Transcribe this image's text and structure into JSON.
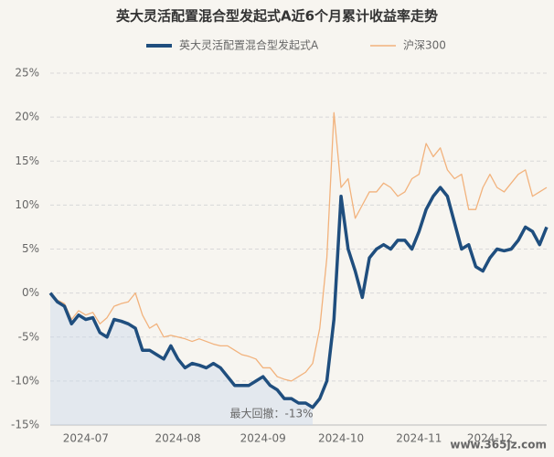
{
  "chart_data": {
    "type": "line",
    "title": "英大灵活配置混合型发起式A近6个月累计收益率走势",
    "annotation": "最大回撤：-13%",
    "watermark": "www.365jz.com",
    "categories": [
      null,
      null,
      null,
      null,
      null,
      "2024-07",
      null,
      null,
      null,
      null,
      null,
      null,
      null,
      null,
      null,
      null,
      null,
      null,
      "2024-08",
      null,
      null,
      null,
      null,
      null,
      null,
      null,
      null,
      null,
      null,
      null,
      "2024-09",
      null,
      null,
      null,
      null,
      null,
      null,
      null,
      null,
      null,
      null,
      "2024-10",
      null,
      null,
      null,
      null,
      null,
      null,
      null,
      null,
      null,
      null,
      "2024-11",
      null,
      null,
      null,
      null,
      null,
      null,
      null,
      null,
      null,
      "2024-12",
      null,
      null,
      null,
      null,
      null,
      null,
      null,
      null
    ],
    "series": [
      {
        "name": "英大灵活配置混合型发起式A",
        "color": "#1f4e7e",
        "values": [
          0,
          -1,
          -1.5,
          -3.5,
          -2.5,
          -3,
          -2.8,
          -4.5,
          -5,
          -3,
          -3.2,
          -3.5,
          -4,
          -6.5,
          -6.5,
          -7,
          -7.5,
          -6,
          -7.5,
          -8.5,
          -8,
          -8.2,
          -8.5,
          -8,
          -8.5,
          -9.5,
          -10.5,
          -10.5,
          -10.5,
          -10,
          -9.5,
          -10.5,
          -11,
          -12,
          -12,
          -12.5,
          -12.5,
          -13,
          -12,
          -10,
          -3,
          11,
          5,
          2.5,
          -0.5,
          4,
          5,
          5.5,
          5,
          6,
          6,
          5,
          7,
          9.5,
          11,
          12,
          11,
          8,
          5,
          5.5,
          3,
          2.5,
          4,
          5,
          4.8,
          5,
          6,
          7.5,
          7,
          5.5,
          7.5
        ]
      },
      {
        "name": "沪深300",
        "color": "#f2b27c",
        "values": [
          0,
          -0.8,
          -1.2,
          -3,
          -2,
          -2.5,
          -2.2,
          -3.5,
          -2.8,
          -1.5,
          -1.2,
          -1,
          0,
          -2.5,
          -4,
          -3.5,
          -5,
          -4.8,
          -5,
          -5.2,
          -5.5,
          -5.2,
          -5.5,
          -5.8,
          -6,
          -6,
          -6.5,
          -7,
          -7.2,
          -7.5,
          -8.5,
          -8.5,
          -9.5,
          -9.8,
          -10,
          -9.5,
          -9,
          -8,
          -4,
          4,
          20.5,
          12,
          13,
          8.5,
          10,
          11.5,
          11.5,
          12.5,
          12,
          11,
          11.5,
          13,
          13.5,
          17,
          15.5,
          16.5,
          14,
          13,
          13.5,
          9.5,
          9.5,
          12,
          13.5,
          12,
          11.5,
          12.5,
          13.5,
          14,
          11,
          11.5,
          12
        ]
      }
    ],
    "ylim": [
      -15,
      25
    ],
    "yticks": [
      {
        "value": -15,
        "label": "-15%"
      },
      {
        "value": -10,
        "label": "-10%"
      },
      {
        "value": -5,
        "label": "-5%"
      },
      {
        "value": 0,
        "label": "0%"
      },
      {
        "value": 5,
        "label": "5%"
      },
      {
        "value": 10,
        "label": "10%"
      },
      {
        "value": 15,
        "label": "15%"
      },
      {
        "value": 20,
        "label": "20%"
      },
      {
        "value": 25,
        "label": "25%"
      }
    ],
    "grid": true
  }
}
